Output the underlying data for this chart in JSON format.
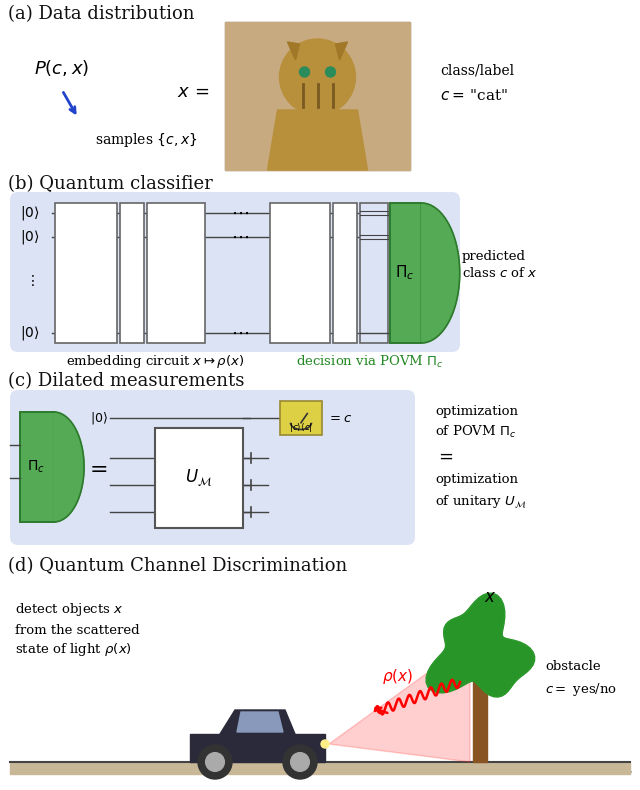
{
  "title_a": "(a) Data distribution",
  "title_b": "(b) Quantum classifier",
  "title_c": "(c) Dilated measurements",
  "title_d": "(d) Quantum Channel Discrimination",
  "bg_color": "#ffffff",
  "panel_bg": "#dce3f5",
  "green_color": "#55aa55",
  "green_dark": "#2d7a2d",
  "blue_arrow": "#2244cc",
  "text_black": "#111111",
  "text_green": "#228822",
  "yellow_box": "#ddd044",
  "section_label_size": 13,
  "body_text_size": 10
}
